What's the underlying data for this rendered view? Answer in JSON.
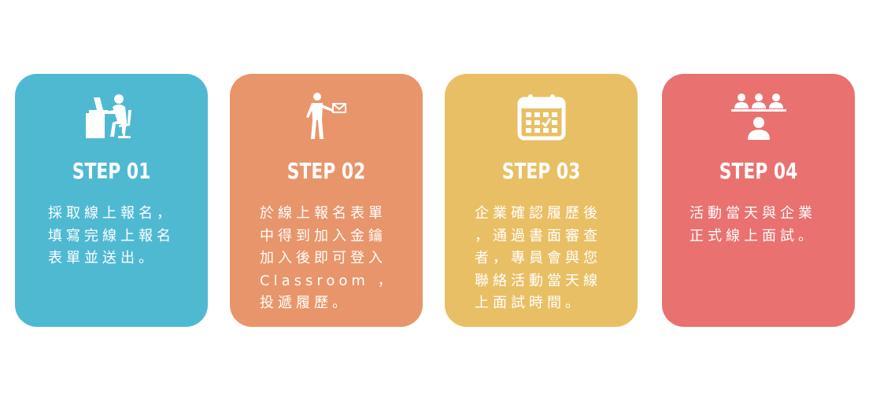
{
  "steps": [
    {
      "title": "STEP 01",
      "icon": "computer-user-icon",
      "color": "#4fb9d2",
      "description": "採取線上報名，\n填寫完線上報名\n表單並送出。"
    },
    {
      "title": "STEP 02",
      "icon": "person-receiving-mail-icon",
      "color": "#e8956b",
      "description": "於線上報名表單\n中得到加入金鑰\n加入後即可登入\nClassroom ，\n投遞履歷。"
    },
    {
      "title": "STEP 03",
      "icon": "calendar-icon",
      "color": "#e9bf65",
      "description": "企業確認履歷後\n，通過書面審查\n者，專員會與您\n聯絡活動當天線\n上面試時間。"
    },
    {
      "title": "STEP 04",
      "icon": "interview-panel-icon",
      "color": "#e9716f",
      "description": "活動當天與企業\n正式線上面試。"
    }
  ]
}
